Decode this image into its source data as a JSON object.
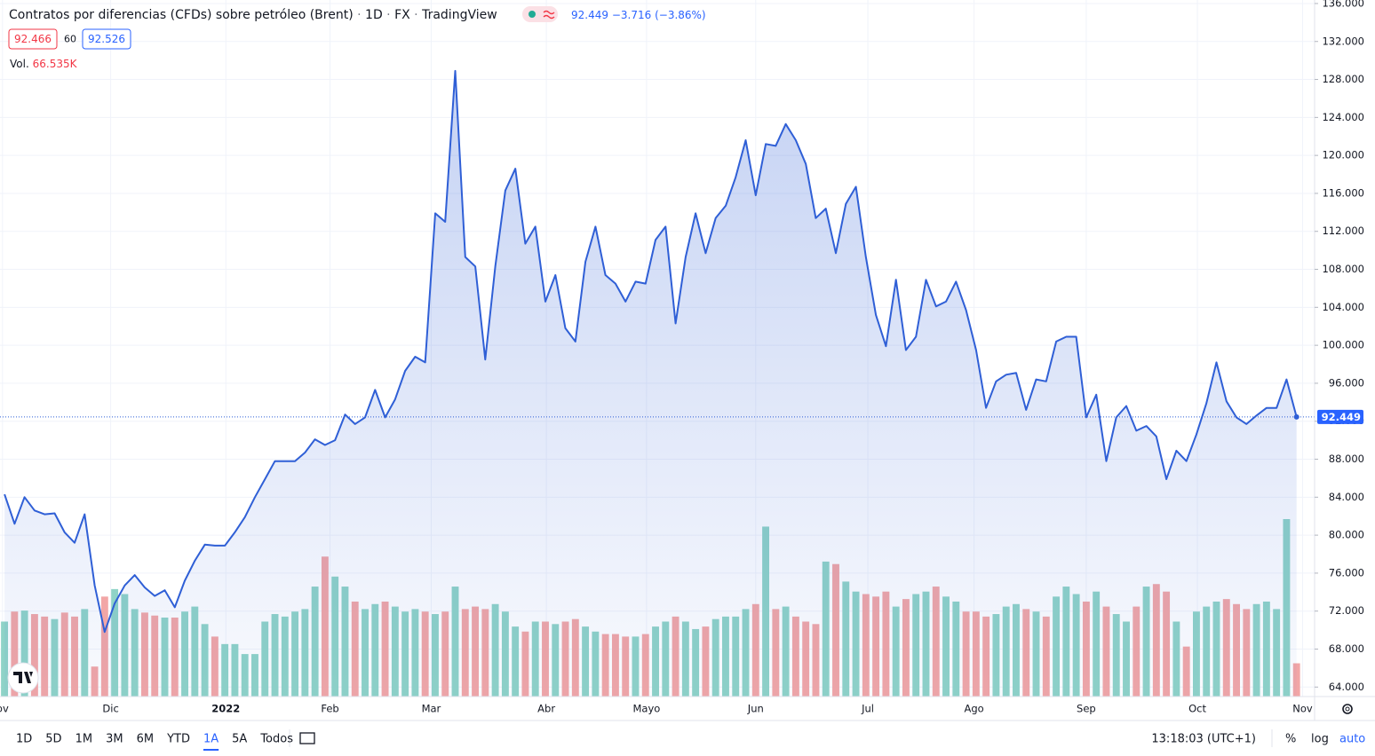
{
  "chart_data": {
    "type": "area",
    "title": "Contratos por diferencias (CFDs) sobre petróleo (Brent)",
    "interval": "1D",
    "exchange": "FX",
    "source": "TradingView",
    "last": "92.449",
    "change": "−3.716",
    "change_pct": "(−3.86%)",
    "bid": "92.466",
    "spread": "60",
    "ask": "92.526",
    "volume_label": "Vol.",
    "volume_value": "66.535K",
    "price_label": "92.449",
    "series": [
      {
        "name": "Brent",
        "color": "#2f5fd6",
        "values": [
          84.3,
          81.2,
          84.0,
          82.6,
          82.2,
          82.3,
          80.3,
          79.2,
          82.2,
          74.7,
          69.8,
          72.8,
          74.7,
          75.8,
          74.5,
          73.6,
          74.2,
          72.4,
          75.2,
          77.3,
          79.0,
          78.9,
          78.9,
          80.3,
          81.9,
          84.0,
          85.9,
          87.8,
          87.8,
          87.8,
          88.7,
          90.1,
          89.5,
          90.0,
          92.7,
          91.7,
          92.4,
          95.3,
          92.4,
          94.3,
          97.3,
          98.8,
          98.2,
          113.9,
          113.0,
          128.9,
          109.3,
          108.3,
          98.5,
          108.3,
          116.3,
          118.6,
          110.7,
          112.5,
          104.6,
          107.4,
          101.8,
          100.4,
          108.8,
          112.5,
          107.4,
          106.5,
          104.6,
          106.7,
          106.5,
          111.1,
          112.5,
          102.3,
          109.3,
          113.9,
          109.7,
          113.4,
          114.7,
          117.7,
          121.6,
          115.8,
          121.2,
          121.0,
          123.3,
          121.6,
          119.1,
          113.4,
          114.4,
          109.7,
          114.9,
          116.7,
          109.3,
          103.2,
          99.9,
          106.9,
          99.5,
          100.9,
          106.9,
          104.1,
          104.6,
          106.7,
          103.7,
          99.5,
          93.4,
          96.2,
          96.9,
          97.1,
          93.2,
          96.4,
          96.2,
          100.4,
          100.9,
          100.9,
          92.4,
          94.8,
          87.8,
          92.4,
          93.6,
          91.0,
          91.5,
          90.4,
          85.9,
          88.9,
          87.8,
          90.6,
          93.9,
          98.2,
          94.1,
          92.4,
          91.7,
          92.6,
          93.4,
          93.4,
          96.4,
          92.449
        ]
      }
    ],
    "volume": {
      "up_color": "#8fd3c7",
      "down_color": "#f2a6a6",
      "values": [
        150,
        170,
        172,
        165,
        160,
        155,
        168,
        160,
        175,
        60,
        200,
        215,
        205,
        175,
        168,
        162,
        158,
        158,
        170,
        180,
        145,
        120,
        105,
        105,
        85,
        85,
        150,
        165,
        160,
        170,
        175,
        220,
        280,
        240,
        220,
        190,
        175,
        185,
        190,
        180,
        170,
        175,
        170,
        165,
        170,
        220,
        175,
        180,
        175,
        185,
        170,
        140,
        130,
        150,
        150,
        145,
        150,
        155,
        140,
        130,
        125,
        125,
        120,
        120,
        125,
        140,
        150,
        160,
        150,
        135,
        140,
        155,
        160,
        160,
        175,
        185,
        340,
        175,
        180,
        160,
        150,
        145,
        270,
        265,
        230,
        210,
        205,
        200,
        210,
        180,
        195,
        205,
        210,
        220,
        200,
        190,
        170,
        170,
        160,
        165,
        180,
        185,
        175,
        170,
        160,
        200,
        220,
        205,
        190,
        210,
        180,
        165,
        150,
        180,
        220,
        225,
        210,
        150,
        100,
        170,
        180,
        190,
        195,
        185,
        175,
        185,
        190,
        175,
        355,
        66.535
      ]
    },
    "xlim": [
      -0.45,
      130.8
    ],
    "xticks": [
      {
        "value": -0.2,
        "label": "ov"
      },
      {
        "value": 10.6,
        "label": "Dic"
      },
      {
        "value": 22.1,
        "label": "2022"
      },
      {
        "value": 32.5,
        "label": "Feb"
      },
      {
        "value": 42.6,
        "label": "Mar"
      },
      {
        "value": 54.1,
        "label": "Abr"
      },
      {
        "value": 64.1,
        "label": "Mayo"
      },
      {
        "value": 75,
        "label": "Jun"
      },
      {
        "value": 86.2,
        "label": "Jul"
      },
      {
        "value": 96.8,
        "label": "Ago"
      },
      {
        "value": 108,
        "label": "Sep"
      },
      {
        "value": 119.1,
        "label": "Oct"
      },
      {
        "value": 129.6,
        "label": "Nov"
      }
    ],
    "ylim": [
      63.0,
      136.37
    ],
    "yticks": [
      {
        "value": 64,
        "label": "64.000"
      },
      {
        "value": 68,
        "label": "68.000"
      },
      {
        "value": 72,
        "label": "72.000"
      },
      {
        "value": 76,
        "label": "76.000"
      },
      {
        "value": 80,
        "label": "80.000"
      },
      {
        "value": 84,
        "label": "84.000"
      },
      {
        "value": 88,
        "label": "88.000"
      },
      {
        "value": 92,
        "label": "92.000"
      },
      {
        "value": 96,
        "label": "96.000"
      },
      {
        "value": 100,
        "label": "100.000"
      },
      {
        "value": 104,
        "label": "104.000"
      },
      {
        "value": 108,
        "label": "108.000"
      },
      {
        "value": 112,
        "label": "112.000"
      },
      {
        "value": 116,
        "label": "116.000"
      },
      {
        "value": 120,
        "label": "120.000"
      },
      {
        "value": 124,
        "label": "124.000"
      },
      {
        "value": 128,
        "label": "128.000"
      },
      {
        "value": 132,
        "label": "132.000"
      },
      {
        "value": 136,
        "label": "136.000"
      }
    ],
    "grid": true,
    "ranges": [
      "1D",
      "5D",
      "1M",
      "3M",
      "6M",
      "YTD",
      "1A",
      "5A",
      "Todos"
    ],
    "active_range": 6,
    "clock": "13:18:03 (UTC+1)",
    "options": [
      "%",
      "log",
      "auto"
    ]
  }
}
